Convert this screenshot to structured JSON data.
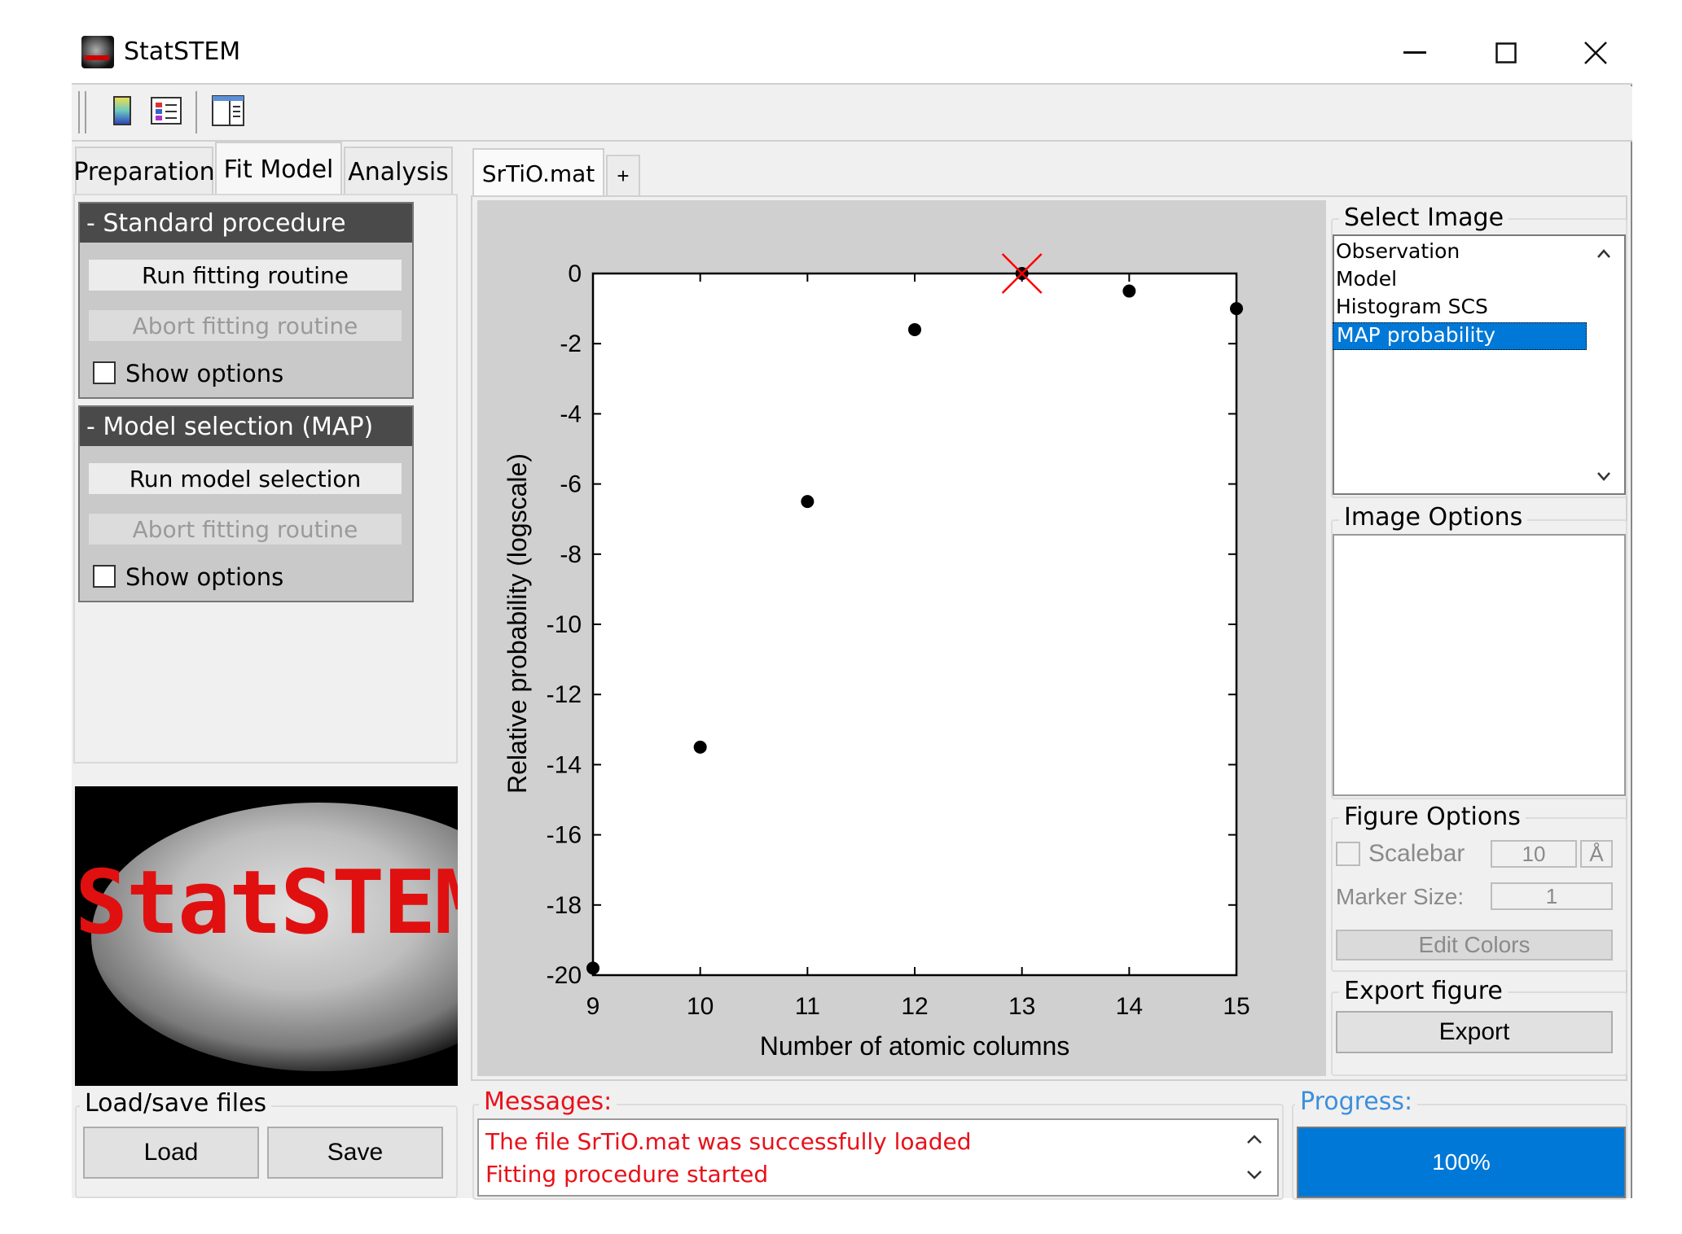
{
  "window": {
    "title": "StatSTEM"
  },
  "toolbar": {
    "icons": [
      "colorbar-icon",
      "legend-icon",
      "panel-layout-icon"
    ]
  },
  "left_tabs": [
    {
      "label": "Preparation",
      "active": false
    },
    {
      "label": "Fit Model",
      "active": true
    },
    {
      "label": "Analysis",
      "active": false
    }
  ],
  "standard_procedure": {
    "header": "- Standard procedure",
    "run_label": "Run fitting routine",
    "abort_label": "Abort fitting routine",
    "options_label": "Show options"
  },
  "model_selection": {
    "header": "- Model selection (MAP)",
    "run_label": "Run model selection",
    "abort_label": "Abort fitting routine",
    "options_label": "Show options"
  },
  "logo_text": "StatSTEM",
  "load_save": {
    "legend": "Load/save files",
    "load_label": "Load",
    "save_label": "Save"
  },
  "file_tab": {
    "label": "SrTiO.mat",
    "add_label": "+"
  },
  "select_image": {
    "legend": "Select Image",
    "items": [
      "Observation",
      "Model",
      "Histogram SCS",
      "MAP probability"
    ],
    "selected": "MAP probability"
  },
  "image_options": {
    "legend": "Image Options"
  },
  "figure_options": {
    "legend": "Figure Options",
    "scalebar_label": "Scalebar",
    "scalebar_value": "10",
    "scalebar_unit": "Å",
    "marker_label": "Marker Size:",
    "marker_value": "1",
    "edit_colors_label": "Edit Colors"
  },
  "export_figure": {
    "legend": "Export figure",
    "export_label": "Export"
  },
  "messages": {
    "legend": "Messages:",
    "lines": [
      "The file SrTiO.mat was successfully loaded",
      "Fitting procedure started"
    ]
  },
  "progress": {
    "legend": "Progress:",
    "value": 1.0,
    "label": "100%",
    "color": "#0078d7"
  },
  "chart_data": {
    "type": "scatter",
    "xlabel": "Number of atomic columns",
    "ylabel": "Relative probability (logscale)",
    "xlim": [
      9,
      15
    ],
    "ylim": [
      -20,
      0
    ],
    "xticks": [
      9,
      10,
      11,
      12,
      13,
      14,
      15
    ],
    "yticks": [
      0,
      -2,
      -4,
      -6,
      -8,
      -10,
      -12,
      -14,
      -16,
      -18,
      -20
    ],
    "x": [
      9,
      10,
      11,
      12,
      13,
      14,
      15
    ],
    "y": [
      -19.8,
      -13.5,
      -6.5,
      -1.6,
      0,
      -0.5,
      -1.0
    ],
    "marker_color": "#000000",
    "highlight": {
      "x": 13,
      "y": 0,
      "marker": "x",
      "color": "#ff0000"
    },
    "grid": false
  }
}
